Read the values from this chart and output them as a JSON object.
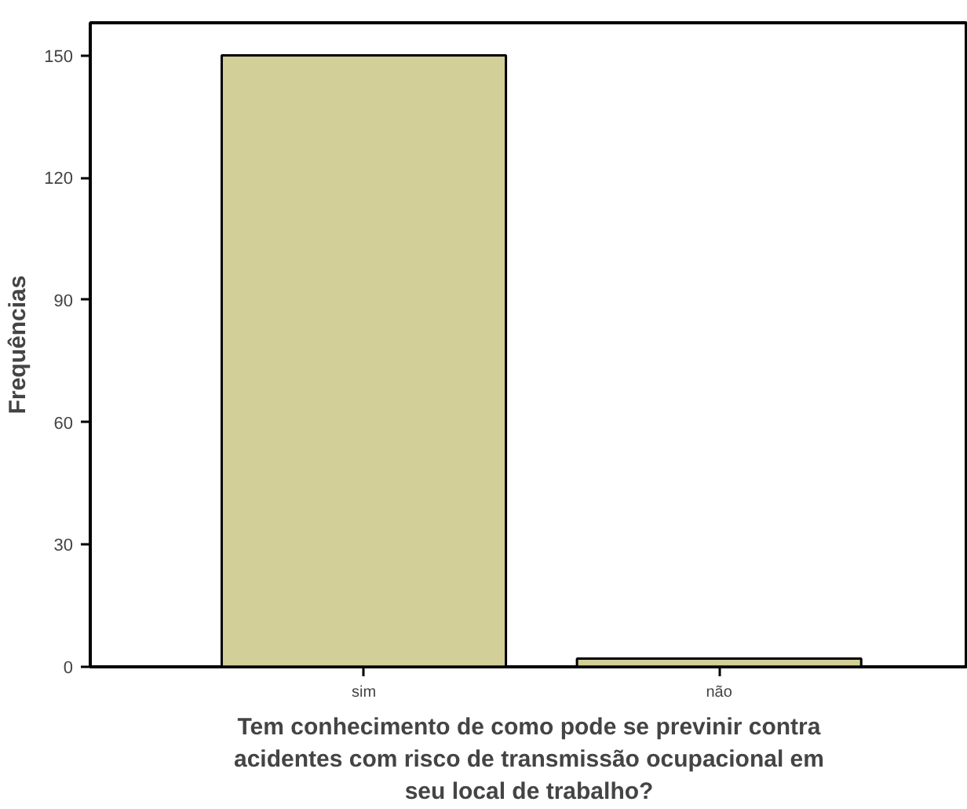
{
  "chart_data": {
    "type": "bar",
    "xlabel": "Tem conhecimento de como pode se previnir contra acidentes com risco de transmissão ocupacional em seu local de trabalho?",
    "ylabel": "Frequências",
    "categories": [
      "sim",
      "não"
    ],
    "values": [
      150,
      2
    ],
    "color": "#d2cf98",
    "ylim": [
      0,
      158
    ],
    "yticks": [
      0,
      30,
      60,
      90,
      120,
      150
    ],
    "grid": false
  }
}
